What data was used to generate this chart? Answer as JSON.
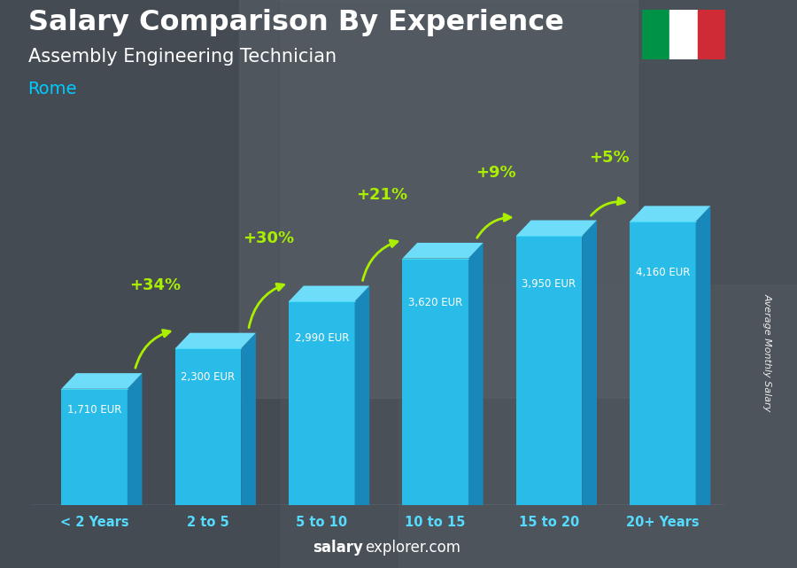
{
  "title": "Salary Comparison By Experience",
  "subtitle": "Assembly Engineering Technician",
  "city": "Rome",
  "categories": [
    "< 2 Years",
    "2 to 5",
    "5 to 10",
    "10 to 15",
    "15 to 20",
    "20+ Years"
  ],
  "values": [
    1710,
    2300,
    2990,
    3620,
    3950,
    4160
  ],
  "pct_labels": [
    "+34%",
    "+30%",
    "+21%",
    "+9%",
    "+5%"
  ],
  "eur_labels": [
    "1,710 EUR",
    "2,300 EUR",
    "2,990 EUR",
    "3,620 EUR",
    "3,950 EUR",
    "4,160 EUR"
  ],
  "bar_color_front": "#29bce8",
  "bar_color_top": "#6eddfa",
  "bar_color_side": "#1888bb",
  "ylabel": "Average Monthly Salary",
  "watermark_bold": "salary",
  "watermark_normal": "explorer.com",
  "title_color": "#ffffff",
  "subtitle_color": "#ffffff",
  "city_color": "#00ccff",
  "pct_color": "#aaee00",
  "eur_color": "#ffffff",
  "xticklabel_color": "#55ddff",
  "background_color": "#5a6068",
  "figsize": [
    9.0,
    6.41
  ],
  "dpi": 100
}
